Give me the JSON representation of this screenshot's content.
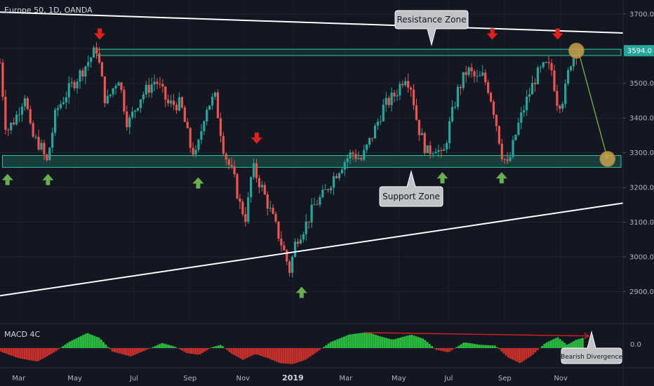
{
  "header": {
    "title": "Europe 50, 1D, OANDA"
  },
  "indicator": {
    "label": "MACD 4C",
    "zero_label": "0.0"
  },
  "price_tag": {
    "value": "3594.0",
    "color": "#26a69a"
  },
  "callouts": {
    "resistance": "Resistance Zone",
    "support": "Support Zone",
    "divergence": "Bearish Divergence"
  },
  "colors": {
    "up": "#26a69a",
    "down": "#ef5350",
    "zone_fill": "#1e6e5a",
    "zone_stroke": "#2ec7a3",
    "arrow_down": "#e0201b",
    "arrow_up": "#6aae4f",
    "macd_pos": "#2ecc40",
    "macd_neg": "#d8332a",
    "circle": "#c9a24e"
  },
  "chart_data": {
    "type": "candlestick",
    "instrument": "Europe 50",
    "timeframe": "1D",
    "source": "OANDA",
    "y_ticks": [
      2900,
      3000,
      3100,
      3200,
      3300,
      3400,
      3500,
      3600,
      3700
    ],
    "y_tick_labels": [
      "2900.0",
      "3000.0",
      "3100.0",
      "3200.0",
      "3300.0",
      "3400.0",
      "3500.0",
      "3600.0",
      "3700.0"
    ],
    "ylim": [
      2810,
      3740
    ],
    "x_labels": [
      "Mar",
      "May",
      "Jul",
      "Sep",
      "Nov",
      "2019",
      "Mar",
      "May",
      "Jul",
      "Sep",
      "Nov"
    ],
    "x_label_t": [
      0.03,
      0.12,
      0.215,
      0.305,
      0.39,
      0.47,
      0.555,
      0.64,
      0.72,
      0.81,
      0.9
    ],
    "last_price": 3594.0,
    "price_path": [
      [
        0.0,
        3560
      ],
      [
        0.01,
        3360
      ],
      [
        0.025,
        3400
      ],
      [
        0.04,
        3470
      ],
      [
        0.05,
        3350
      ],
      [
        0.065,
        3320
      ],
      [
        0.075,
        3270
      ],
      [
        0.09,
        3420
      ],
      [
        0.11,
        3480
      ],
      [
        0.135,
        3545
      ],
      [
        0.155,
        3600
      ],
      [
        0.17,
        3440
      ],
      [
        0.19,
        3520
      ],
      [
        0.205,
        3380
      ],
      [
        0.225,
        3460
      ],
      [
        0.25,
        3510
      ],
      [
        0.27,
        3440
      ],
      [
        0.29,
        3440
      ],
      [
        0.305,
        3320
      ],
      [
        0.315,
        3290
      ],
      [
        0.33,
        3430
      ],
      [
        0.345,
        3460
      ],
      [
        0.36,
        3300
      ],
      [
        0.375,
        3230
      ],
      [
        0.385,
        3150
      ],
      [
        0.395,
        3110
      ],
      [
        0.405,
        3260
      ],
      [
        0.42,
        3200
      ],
      [
        0.44,
        3100
      ],
      [
        0.455,
        3020
      ],
      [
        0.465,
        2960
      ],
      [
        0.475,
        3050
      ],
      [
        0.49,
        3090
      ],
      [
        0.505,
        3150
      ],
      [
        0.52,
        3180
      ],
      [
        0.535,
        3230
      ],
      [
        0.55,
        3270
      ],
      [
        0.565,
        3300
      ],
      [
        0.58,
        3280
      ],
      [
        0.6,
        3360
      ],
      [
        0.615,
        3430
      ],
      [
        0.635,
        3470
      ],
      [
        0.65,
        3525
      ],
      [
        0.66,
        3490
      ],
      [
        0.67,
        3380
      ],
      [
        0.685,
        3300
      ],
      [
        0.7,
        3320
      ],
      [
        0.71,
        3280
      ],
      [
        0.72,
        3370
      ],
      [
        0.735,
        3480
      ],
      [
        0.75,
        3540
      ],
      [
        0.765,
        3510
      ],
      [
        0.775,
        3520
      ],
      [
        0.785,
        3480
      ],
      [
        0.795,
        3400
      ],
      [
        0.805,
        3300
      ],
      [
        0.815,
        3260
      ],
      [
        0.83,
        3370
      ],
      [
        0.845,
        3450
      ],
      [
        0.86,
        3520
      ],
      [
        0.875,
        3550
      ],
      [
        0.885,
        3540
      ],
      [
        0.895,
        3440
      ],
      [
        0.905,
        3460
      ],
      [
        0.915,
        3560
      ],
      [
        0.925,
        3594
      ]
    ],
    "zones": [
      {
        "name": "resistance",
        "low": 3580,
        "high": 3598
      },
      {
        "name": "support",
        "low": 3258,
        "high": 3292
      }
    ],
    "trendlines": [
      {
        "name": "upper-trendline",
        "from": [
          0.0,
          3705
        ],
        "to": [
          1.0,
          3645
        ]
      },
      {
        "name": "lower-trendline",
        "from": [
          0.0,
          2888
        ],
        "to": [
          1.0,
          3155
        ]
      }
    ],
    "projection": {
      "from": [
        0.928,
        3594
      ],
      "to": [
        0.975,
        3282
      ]
    },
    "markers_down": [
      {
        "t": 0.16,
        "price": 3640
      },
      {
        "t": 0.412,
        "price": 3340
      },
      {
        "t": 0.79,
        "price": 3640
      },
      {
        "t": 0.895,
        "price": 3640
      }
    ],
    "markers_up": [
      {
        "t": 0.012,
        "price": 3225
      },
      {
        "t": 0.077,
        "price": 3225
      },
      {
        "t": 0.318,
        "price": 3215
      },
      {
        "t": 0.484,
        "price": 2900
      },
      {
        "t": 0.71,
        "price": 3230
      },
      {
        "t": 0.805,
        "price": 3230
      }
    ],
    "circles": [
      {
        "t": 0.925,
        "price": 3594
      },
      {
        "t": 0.975,
        "price": 3282
      }
    ],
    "macd": {
      "label": "MACD 4C",
      "zero": 0.0,
      "path": [
        [
          0.0,
          -0.2
        ],
        [
          0.03,
          -0.6
        ],
        [
          0.06,
          -0.8
        ],
        [
          0.085,
          -0.3
        ],
        [
          0.11,
          0.35
        ],
        [
          0.14,
          0.9
        ],
        [
          0.16,
          0.6
        ],
        [
          0.18,
          -0.2
        ],
        [
          0.21,
          -0.5
        ],
        [
          0.235,
          -0.1
        ],
        [
          0.26,
          0.3
        ],
        [
          0.28,
          0.1
        ],
        [
          0.3,
          -0.3
        ],
        [
          0.32,
          -0.4
        ],
        [
          0.34,
          0.05
        ],
        [
          0.355,
          0.2
        ],
        [
          0.37,
          -0.3
        ],
        [
          0.39,
          -0.7
        ],
        [
          0.41,
          -0.35
        ],
        [
          0.43,
          -0.6
        ],
        [
          0.45,
          -0.9
        ],
        [
          0.47,
          -0.95
        ],
        [
          0.49,
          -0.7
        ],
        [
          0.51,
          -0.2
        ],
        [
          0.53,
          0.35
        ],
        [
          0.56,
          0.8
        ],
        [
          0.59,
          0.95
        ],
        [
          0.61,
          0.7
        ],
        [
          0.63,
          0.5
        ],
        [
          0.66,
          0.8
        ],
        [
          0.68,
          0.55
        ],
        [
          0.7,
          -0.1
        ],
        [
          0.72,
          -0.25
        ],
        [
          0.745,
          0.35
        ],
        [
          0.77,
          0.2
        ],
        [
          0.795,
          0.15
        ],
        [
          0.815,
          -0.55
        ],
        [
          0.835,
          -0.9
        ],
        [
          0.855,
          -0.4
        ],
        [
          0.875,
          0.3
        ],
        [
          0.895,
          0.65
        ],
        [
          0.91,
          0.2
        ],
        [
          0.925,
          0.5
        ],
        [
          0.935,
          0.6
        ]
      ],
      "divergence_line": {
        "from": [
          0.585,
          0.92
        ],
        "to": [
          0.945,
          0.72
        ]
      }
    }
  }
}
